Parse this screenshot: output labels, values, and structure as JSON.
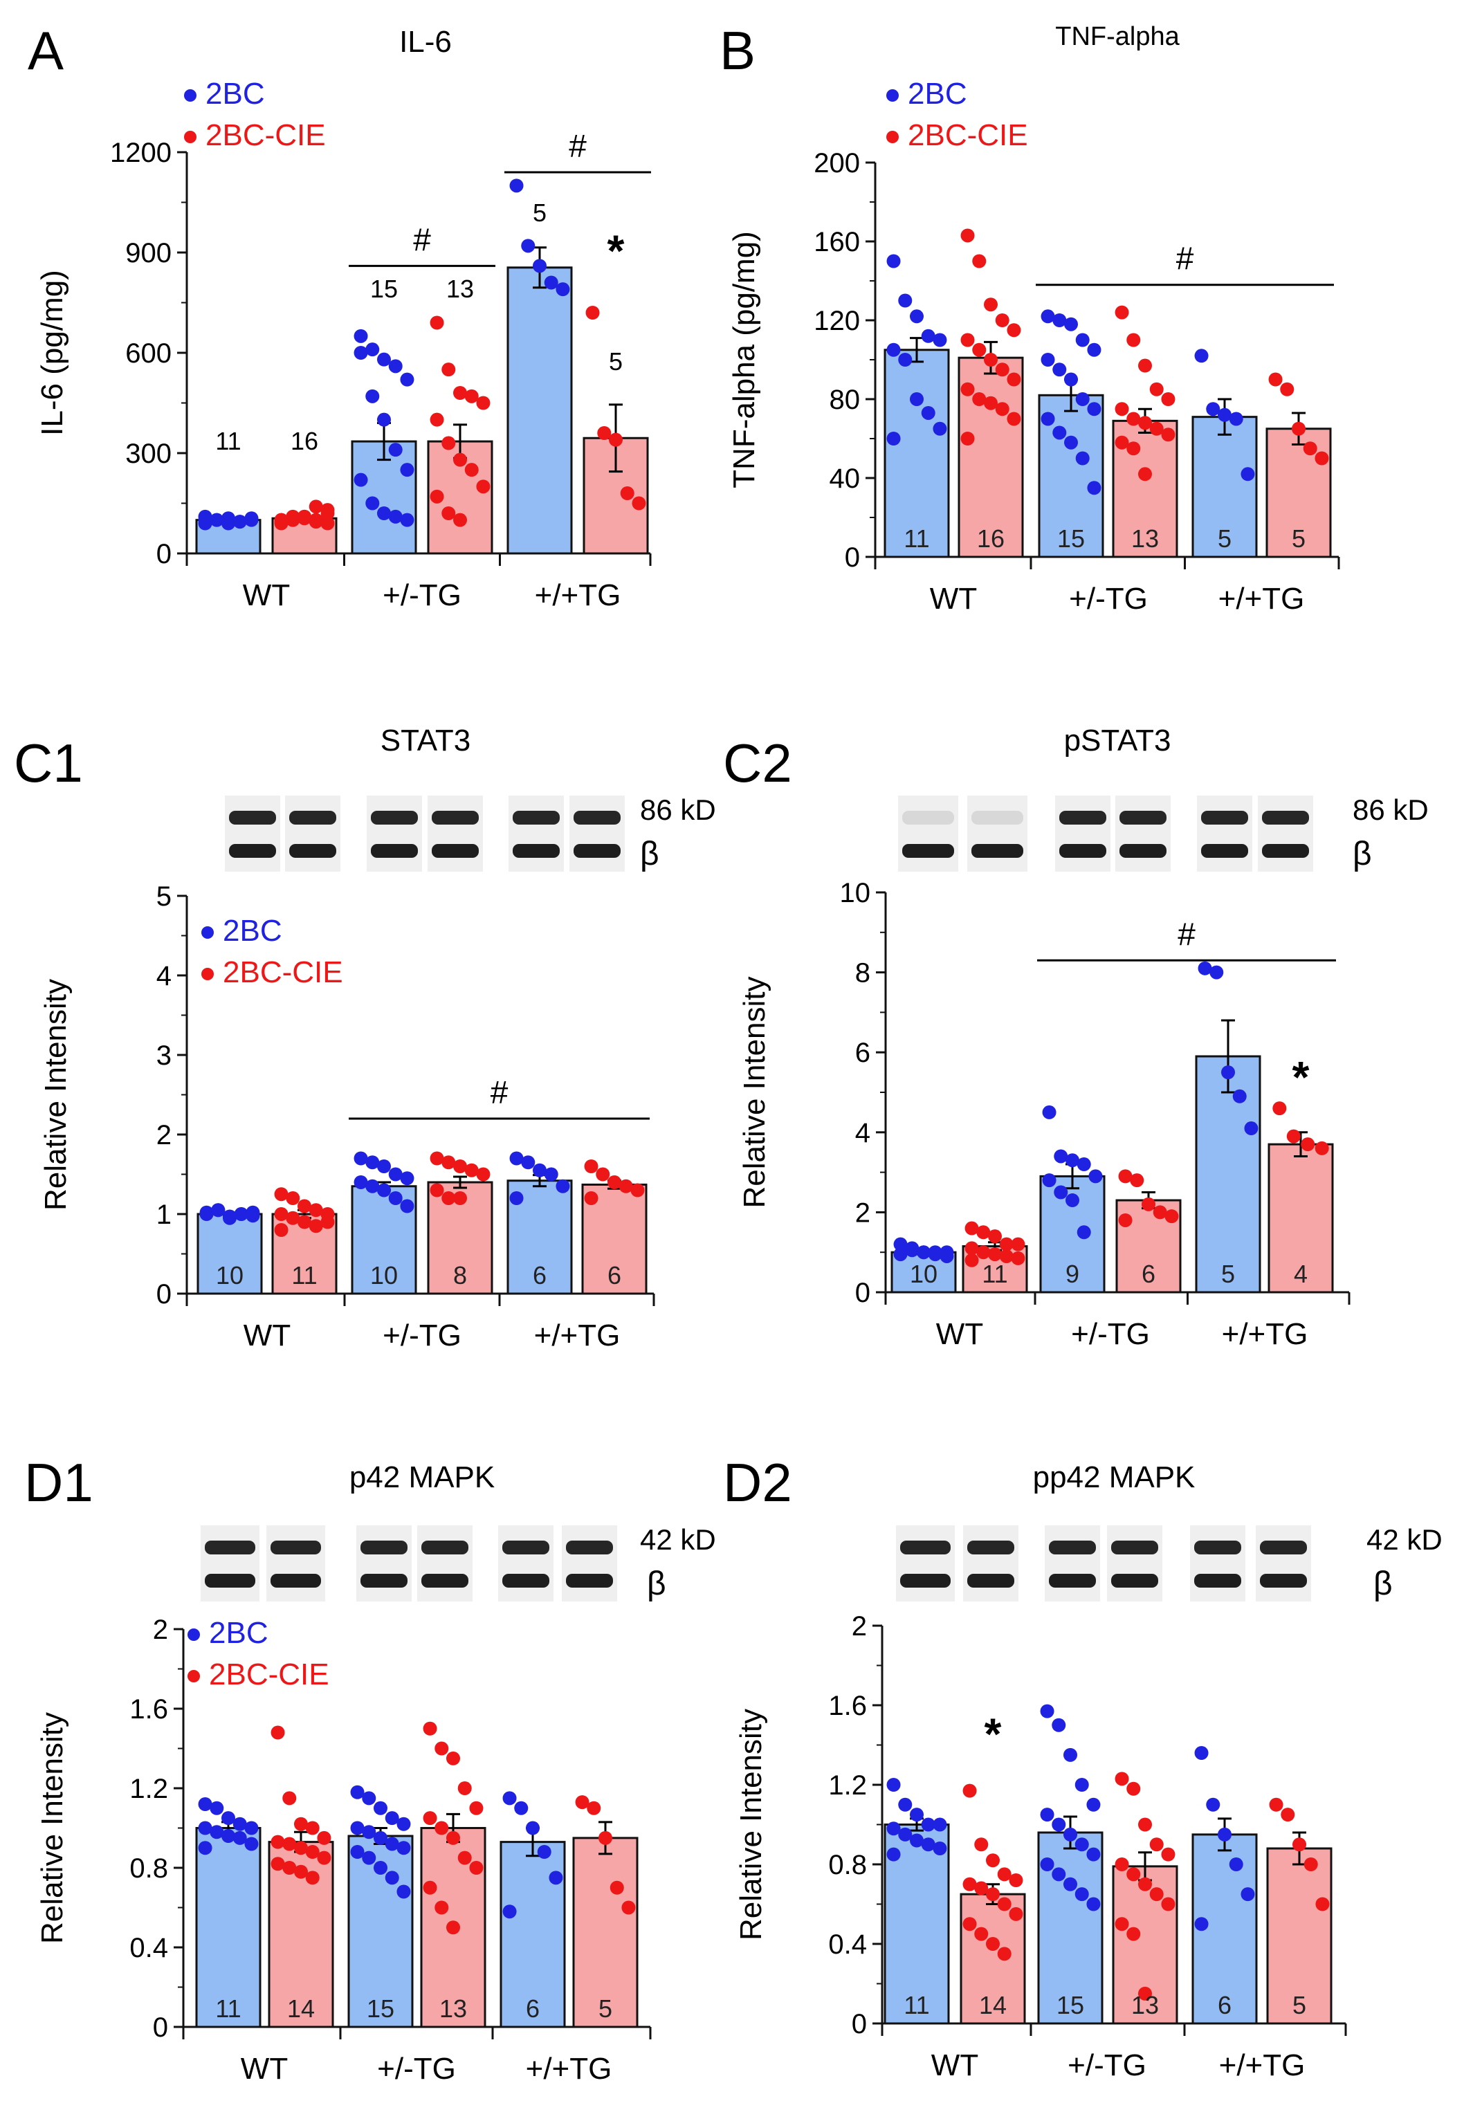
{
  "colors": {
    "blue_fill": "#93bbf4",
    "red_fill": "#f6a6a6",
    "blue_dot": "#1f22e0",
    "red_dot": "#ee1717",
    "axis": "#111111"
  },
  "legend": {
    "series_a": "2BC",
    "series_b": "2BC-CIE"
  },
  "blots": {
    "band_86": "86 kD",
    "band_42": "42 kD",
    "beta": "β"
  },
  "chart_data": [
    {
      "panel_id": "A",
      "type": "bar",
      "title": "IL-6",
      "ylabel": "IL-6 (pg/mg)",
      "ylim": [
        0,
        1200
      ],
      "ticks": [
        0,
        300,
        600,
        900,
        1200
      ],
      "groups": [
        "WT",
        "+/-TG",
        "+/+TG"
      ],
      "series": [
        {
          "name": "2BC",
          "means": [
            100,
            335,
            855
          ],
          "sem": [
            5,
            55,
            60
          ],
          "n": [
            11,
            15,
            5
          ],
          "points": [
            [
              90,
              100,
              105,
              95,
              100,
              110,
              100,
              90,
              95,
              105,
              100
            ],
            [
              600,
              610,
              580,
              560,
              520,
              650,
              470,
              400,
              310,
              250,
              220,
              150,
              120,
              110,
              100
            ],
            [
              1100,
              920,
              860,
              810,
              790
            ]
          ]
        },
        {
          "name": "2BC-CIE",
          "means": [
            105,
            335,
            345
          ],
          "sem": [
            5,
            50,
            100
          ],
          "n": [
            16,
            13,
            5
          ],
          "points": [
            [
              100,
              110,
              105,
              95,
              120,
              90,
              100,
              110,
              100,
              130,
              95,
              100,
              110,
              140,
              90,
              100
            ],
            [
              690,
              550,
              480,
              470,
              450,
              400,
              330,
              280,
              250,
              200,
              170,
              120,
              100
            ],
            [
              720,
              360,
              340,
              180,
              150
            ]
          ]
        }
      ],
      "group_sig": [
        {
          "label": "#",
          "from": 1,
          "to": 1,
          "y": 860
        },
        {
          "label": "#",
          "from": 2,
          "to": 2,
          "y": 1140
        }
      ],
      "stars": [
        {
          "group": 2,
          "series": 1,
          "y": 860
        }
      ]
    },
    {
      "panel_id": "B",
      "type": "bar",
      "title": "TNF-alpha",
      "ylabel": "TNF-alpha (pg/mg)",
      "ylim": [
        0,
        200
      ],
      "ticks": [
        0,
        40,
        80,
        120,
        160,
        200
      ],
      "groups": [
        "WT",
        "+/-TG",
        "+/+TG"
      ],
      "series": [
        {
          "name": "2BC",
          "means": [
            105,
            82,
            71
          ],
          "sem": [
            6,
            8,
            9
          ],
          "n": [
            11,
            15,
            5
          ],
          "points": [
            [
              150,
              130,
              122,
              112,
              110,
              105,
              100,
              80,
              73,
              65,
              60
            ],
            [
              122,
              120,
              118,
              110,
              105,
              100,
              95,
              90,
              80,
              75,
              70,
              63,
              58,
              50,
              35
            ],
            [
              102,
              75,
              72,
              70,
              42
            ]
          ]
        },
        {
          "name": "2BC-CIE",
          "means": [
            101,
            69,
            65
          ],
          "sem": [
            8,
            6,
            8
          ],
          "n": [
            16,
            13,
            5
          ],
          "points": [
            [
              163,
              150,
              128,
              120,
              115,
              110,
              105,
              100,
              95,
              90,
              85,
              80,
              78,
              75,
              70,
              60
            ],
            [
              124,
              110,
              97,
              85,
              80,
              75,
              70,
              68,
              65,
              62,
              58,
              55,
              42
            ],
            [
              90,
              85,
              65,
              55,
              50
            ]
          ]
        }
      ],
      "group_sig": [
        {
          "label": "#",
          "from": 1,
          "to": 2,
          "y": 138
        }
      ],
      "stars": []
    },
    {
      "panel_id": "C1",
      "type": "bar",
      "title": "STAT3",
      "ylabel": "Relative Intensity",
      "ylim": [
        0,
        5
      ],
      "ticks": [
        0,
        1,
        2,
        3,
        4,
        5
      ],
      "groups": [
        "WT",
        "+/-TG",
        "+/+TG"
      ],
      "series": [
        {
          "name": "2BC",
          "means": [
            1.0,
            1.35,
            1.42
          ],
          "sem": [
            0.02,
            0.05,
            0.07
          ],
          "n": [
            10,
            10,
            6
          ],
          "points": [
            [
              1.02,
              1.05,
              0.95,
              1.0,
              0.98,
              1.0,
              1.05,
              0.97,
              1.0,
              1.02
            ],
            [
              1.7,
              1.65,
              1.6,
              1.5,
              1.45,
              1.4,
              1.35,
              1.3,
              1.2,
              1.1
            ],
            [
              1.7,
              1.65,
              1.55,
              1.5,
              1.35,
              1.2
            ]
          ]
        },
        {
          "name": "2BC-CIE",
          "means": [
            1.0,
            1.4,
            1.37
          ],
          "sem": [
            0.05,
            0.07,
            0.05
          ],
          "n": [
            11,
            8,
            6
          ],
          "points": [
            [
              1.25,
              1.2,
              1.1,
              1.05,
              1.0,
              1.0,
              0.95,
              0.9,
              0.85,
              0.9,
              0.8
            ],
            [
              1.7,
              1.65,
              1.6,
              1.55,
              1.5,
              1.3,
              1.2,
              1.2
            ],
            [
              1.6,
              1.5,
              1.4,
              1.35,
              1.3,
              1.2
            ]
          ]
        }
      ],
      "group_sig": [
        {
          "label": "#",
          "from": 1,
          "to": 2,
          "y": 2.2
        }
      ],
      "stars": []
    },
    {
      "panel_id": "C2",
      "type": "bar",
      "title": "pSTAT3",
      "ylabel": "Relative Intensity",
      "ylim": [
        0,
        10
      ],
      "ticks": [
        0,
        2,
        4,
        6,
        8,
        10
      ],
      "groups": [
        "WT",
        "+/-TG",
        "+/+TG"
      ],
      "series": [
        {
          "name": "2BC",
          "means": [
            1.0,
            2.9,
            5.9
          ],
          "sem": [
            0.05,
            0.3,
            0.9
          ],
          "n": [
            10,
            9,
            5
          ],
          "points": [
            [
              1.2,
              1.1,
              1.0,
              0.95,
              1.0,
              0.95,
              1.05,
              1.0,
              1.0,
              0.9
            ],
            [
              4.5,
              3.4,
              3.3,
              3.2,
              2.9,
              2.8,
              2.5,
              2.3,
              1.5
            ],
            [
              8.1,
              8.0,
              5.5,
              4.9,
              4.1
            ]
          ]
        },
        {
          "name": "2BC-CIE",
          "means": [
            1.15,
            2.3,
            3.7
          ],
          "sem": [
            0.1,
            0.2,
            0.3
          ],
          "n": [
            11,
            6,
            4
          ],
          "points": [
            [
              1.6,
              1.5,
              1.4,
              1.2,
              1.2,
              1.1,
              1.0,
              0.95,
              0.9,
              0.85,
              0.8
            ],
            [
              2.9,
              2.8,
              2.2,
              2.0,
              1.9,
              1.8
            ],
            [
              4.6,
              3.9,
              3.7,
              3.6
            ]
          ]
        }
      ],
      "group_sig": [
        {
          "label": "#",
          "from": 1,
          "to": 2,
          "y": 8.3
        }
      ],
      "stars": [
        {
          "group": 2,
          "series": 1,
          "y": 5.0
        }
      ]
    },
    {
      "panel_id": "D1",
      "type": "bar",
      "title": "p42 MAPK",
      "ylabel": "Relative Intensity",
      "ylim": [
        0,
        2
      ],
      "ticks": [
        0,
        0.4,
        0.8,
        1.2,
        1.6,
        2
      ],
      "groups": [
        "WT",
        "+/-TG",
        "+/+TG"
      ],
      "series": [
        {
          "name": "2BC",
          "means": [
            1.0,
            0.96,
            0.93
          ],
          "sem": [
            0.03,
            0.04,
            0.07
          ],
          "n": [
            11,
            15,
            6
          ],
          "points": [
            [
              1.12,
              1.1,
              1.05,
              1.02,
              1.0,
              1.0,
              0.98,
              0.96,
              0.95,
              0.92,
              0.9
            ],
            [
              1.18,
              1.15,
              1.1,
              1.05,
              1.02,
              1.0,
              0.98,
              0.95,
              0.92,
              0.9,
              0.88,
              0.85,
              0.8,
              0.75,
              0.68
            ],
            [
              1.15,
              1.1,
              1.0,
              0.88,
              0.75,
              0.58
            ]
          ]
        },
        {
          "name": "2BC-CIE",
          "means": [
            0.93,
            1.0,
            0.95
          ],
          "sem": [
            0.05,
            0.07,
            0.08
          ],
          "n": [
            14,
            13,
            5
          ],
          "points": [
            [
              1.48,
              1.15,
              1.02,
              1.0,
              0.95,
              0.93,
              0.92,
              0.9,
              0.88,
              0.85,
              0.82,
              0.8,
              0.78,
              0.75
            ],
            [
              1.5,
              1.4,
              1.35,
              1.2,
              1.1,
              1.05,
              1.0,
              0.95,
              0.85,
              0.8,
              0.7,
              0.6,
              0.5
            ],
            [
              1.13,
              1.1,
              0.95,
              0.7,
              0.6
            ]
          ]
        }
      ],
      "group_sig": [],
      "stars": []
    },
    {
      "panel_id": "D2",
      "type": "bar",
      "title": "pp42 MAPK",
      "ylabel": "Relative Intensity",
      "ylim": [
        0,
        2
      ],
      "ticks": [
        0,
        0.4,
        0.8,
        1.2,
        1.6,
        2
      ],
      "groups": [
        "WT",
        "+/-TG",
        "+/+TG"
      ],
      "series": [
        {
          "name": "2BC",
          "means": [
            1.0,
            0.96,
            0.95
          ],
          "sem": [
            0.03,
            0.08,
            0.08
          ],
          "n": [
            11,
            15,
            6
          ],
          "points": [
            [
              1.2,
              1.1,
              1.05,
              1.0,
              1.0,
              0.98,
              0.95,
              0.92,
              0.9,
              0.88,
              0.85
            ],
            [
              1.57,
              1.5,
              1.35,
              1.2,
              1.1,
              1.05,
              1.0,
              0.95,
              0.9,
              0.85,
              0.8,
              0.75,
              0.7,
              0.65,
              0.6
            ],
            [
              1.36,
              1.1,
              0.95,
              0.8,
              0.65,
              0.5
            ]
          ]
        },
        {
          "name": "2BC-CIE",
          "means": [
            0.65,
            0.79,
            0.88
          ],
          "sem": [
            0.05,
            0.07,
            0.08
          ],
          "n": [
            14,
            13,
            5
          ],
          "points": [
            [
              1.17,
              0.9,
              0.82,
              0.75,
              0.72,
              0.7,
              0.68,
              0.65,
              0.6,
              0.55,
              0.5,
              0.45,
              0.4,
              0.35
            ],
            [
              1.23,
              1.18,
              1.0,
              0.9,
              0.85,
              0.8,
              0.75,
              0.7,
              0.65,
              0.6,
              0.5,
              0.45,
              0.15
            ],
            [
              1.1,
              1.05,
              0.9,
              0.8,
              0.6
            ]
          ]
        }
      ],
      "group_sig": [],
      "stars": [
        {
          "group": 0,
          "series": 1,
          "y": 1.38
        }
      ]
    }
  ]
}
